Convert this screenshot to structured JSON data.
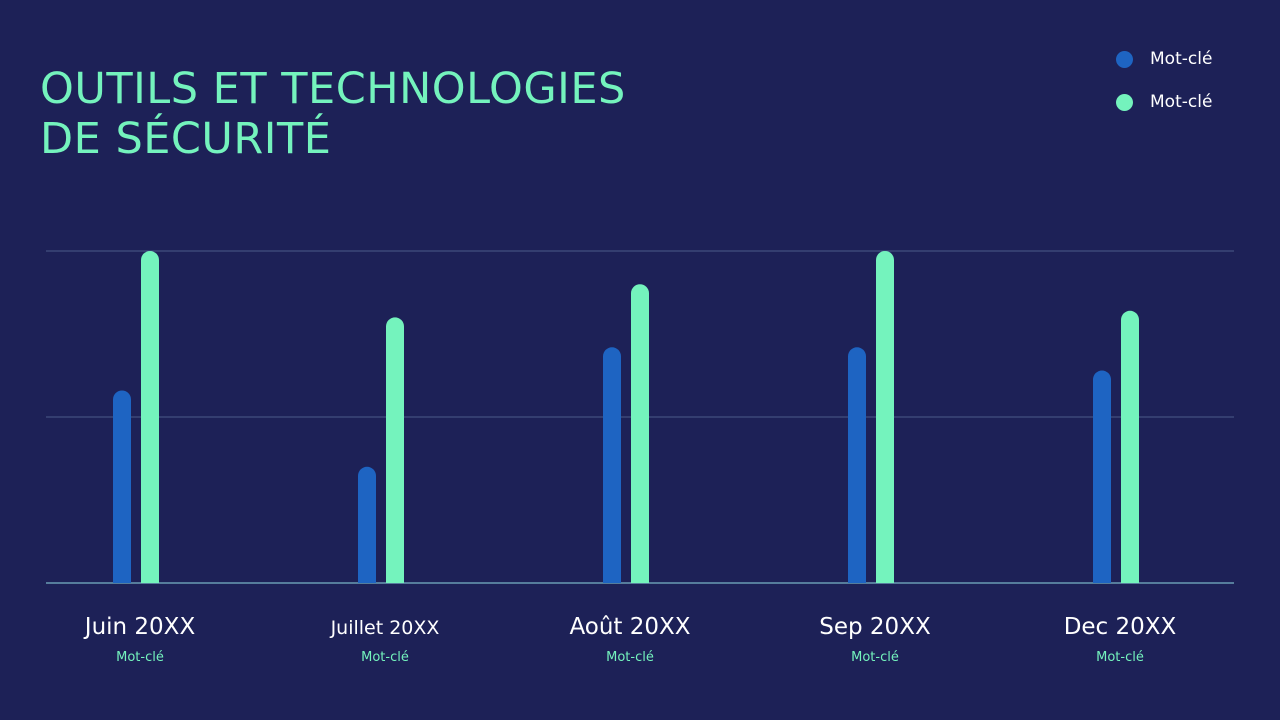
{
  "title": {
    "line1": "OUTILS ET TECHNOLOGIES",
    "line2": "DE SÉCURITÉ"
  },
  "colors": {
    "background": "#1d2157",
    "accent": "#74f3bd",
    "series1": "#1e64c2",
    "series2": "#74f3bd",
    "text": "#ffffff",
    "grid": "#4a5a8a"
  },
  "chart_data": {
    "type": "bar",
    "title": "OUTILS ET TECHNOLOGIES DE SÉCURITÉ",
    "categories": [
      "Juin 20XX",
      "Juillet 20XX",
      "Août 20XX",
      "Sep 20XX",
      "Dec 20XX"
    ],
    "sublabels": [
      "Mot-clé",
      "Mot-clé",
      "Mot-clé",
      "Mot-clé",
      "Mot-clé"
    ],
    "series": [
      {
        "name": "Mot-clé",
        "color": "#1e64c2",
        "values": [
          58,
          35,
          71,
          71,
          64
        ]
      },
      {
        "name": "Mot-clé",
        "color": "#74f3bd",
        "values": [
          100,
          80,
          90,
          100,
          82
        ]
      }
    ],
    "ylim": [
      0,
      100
    ],
    "gridlines": [
      50,
      100
    ],
    "grid": true,
    "legend": "top-right",
    "xlabel": "",
    "ylabel": ""
  }
}
